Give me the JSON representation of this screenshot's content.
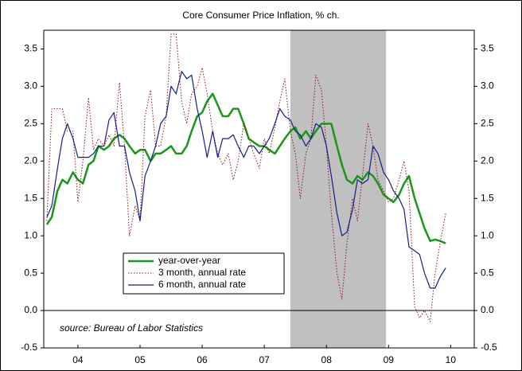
{
  "chart_data": {
    "type": "line",
    "title": "Core Consumer Price Inflation, % ch.",
    "source": "source: Bureau of Labor Statistics",
    "x": [
      2004.0,
      2004.08,
      2004.17,
      2004.25,
      2004.33,
      2004.42,
      2004.5,
      2004.58,
      2004.67,
      2004.75,
      2004.83,
      2004.92,
      2005.0,
      2005.08,
      2005.17,
      2005.25,
      2005.33,
      2005.42,
      2005.5,
      2005.58,
      2005.67,
      2005.75,
      2005.83,
      2005.92,
      2006.0,
      2006.08,
      2006.17,
      2006.25,
      2006.33,
      2006.42,
      2006.5,
      2006.58,
      2006.67,
      2006.75,
      2006.83,
      2006.92,
      2007.0,
      2007.08,
      2007.17,
      2007.25,
      2007.33,
      2007.42,
      2007.5,
      2007.58,
      2007.67,
      2007.75,
      2007.83,
      2007.92,
      2008.0,
      2008.08,
      2008.17,
      2008.25,
      2008.33,
      2008.42,
      2008.5,
      2008.58,
      2008.67,
      2008.75,
      2008.83,
      2008.92,
      2009.0,
      2009.08,
      2009.17,
      2009.25,
      2009.33,
      2009.42,
      2009.5,
      2009.58,
      2009.67,
      2009.75,
      2009.83,
      2009.92,
      2010.0,
      2010.08,
      2010.17,
      2010.25,
      2010.33,
      2010.42
    ],
    "series": [
      {
        "name": "year-over-year",
        "color": "#1a961a",
        "width": 2.5,
        "dash": "",
        "values": [
          1.15,
          1.25,
          1.6,
          1.75,
          1.7,
          1.85,
          1.75,
          1.7,
          1.95,
          2.0,
          2.2,
          2.15,
          2.2,
          2.3,
          2.35,
          2.3,
          2.2,
          2.1,
          2.15,
          2.15,
          2.0,
          2.1,
          2.1,
          2.15,
          2.2,
          2.1,
          2.1,
          2.2,
          2.4,
          2.6,
          2.65,
          2.8,
          2.9,
          2.75,
          2.6,
          2.6,
          2.7,
          2.7,
          2.5,
          2.3,
          2.25,
          2.2,
          2.2,
          2.15,
          2.1,
          2.2,
          2.3,
          2.4,
          2.45,
          2.3,
          2.4,
          2.3,
          2.4,
          2.5,
          2.5,
          2.5,
          2.2,
          1.95,
          1.75,
          1.7,
          1.8,
          1.75,
          1.85,
          1.8,
          1.7,
          1.55,
          1.5,
          1.45,
          1.55,
          1.7,
          1.8,
          1.5,
          1.3,
          1.1,
          0.93,
          0.95,
          0.93,
          0.9
        ]
      },
      {
        "name": "3 month, annual rate",
        "color": "#8b1a1a",
        "width": 1,
        "dash": "1.5,2",
        "values": [
          1.2,
          2.7,
          2.7,
          2.7,
          2.4,
          2.4,
          1.45,
          2.0,
          2.85,
          2.15,
          2.3,
          2.2,
          2.35,
          2.2,
          3.05,
          2.2,
          1.0,
          1.4,
          1.2,
          2.6,
          2.95,
          2.2,
          2.2,
          2.6,
          3.7,
          3.7,
          2.8,
          2.5,
          2.9,
          3.0,
          3.25,
          2.9,
          2.4,
          2.1,
          1.95,
          2.1,
          1.75,
          2.0,
          2.5,
          2.3,
          2.1,
          1.9,
          2.3,
          2.1,
          2.45,
          2.8,
          3.1,
          2.4,
          2.1,
          1.5,
          2.1,
          2.3,
          3.15,
          2.95,
          2.2,
          1.3,
          0.5,
          0.15,
          0.9,
          1.5,
          1.2,
          1.8,
          2.5,
          2.2,
          1.75,
          1.6,
          1.45,
          1.5,
          1.75,
          2.0,
          1.6,
          0.05,
          -0.1,
          0.0,
          -0.15,
          0.5,
          0.9,
          1.3
        ]
      },
      {
        "name": "6 month, annual rate",
        "color": "#1a1a8c",
        "width": 1.2,
        "dash": "",
        "values": [
          1.25,
          1.4,
          1.9,
          2.3,
          2.5,
          2.3,
          2.05,
          2.05,
          2.05,
          2.1,
          2.2,
          2.2,
          2.55,
          2.65,
          2.2,
          2.2,
          1.85,
          1.6,
          1.2,
          1.8,
          2.0,
          2.2,
          2.5,
          2.6,
          3.0,
          2.9,
          3.2,
          3.1,
          3.15,
          2.7,
          2.4,
          2.05,
          2.4,
          2.05,
          2.3,
          2.3,
          2.35,
          2.2,
          2.05,
          2.2,
          2.2,
          2.1,
          2.2,
          2.3,
          2.5,
          2.7,
          2.6,
          2.55,
          2.4,
          2.35,
          2.2,
          2.3,
          2.5,
          2.45,
          2.2,
          1.8,
          1.3,
          1.0,
          1.05,
          1.35,
          1.75,
          1.7,
          1.75,
          2.2,
          2.1,
          1.85,
          1.75,
          1.6,
          1.5,
          1.35,
          0.85,
          0.8,
          0.75,
          0.5,
          0.3,
          0.3,
          0.45,
          0.57
        ]
      }
    ],
    "shade": {
      "x": [
        2007.92,
        2009.46
      ],
      "color": "#c0c0c0"
    },
    "xlim": [
      2003.95,
      2010.88
    ],
    "xticks": [
      {
        "value": 2004.5,
        "label": "04"
      },
      {
        "value": 2005.5,
        "label": "05"
      },
      {
        "value": 2006.5,
        "label": "06"
      },
      {
        "value": 2007.5,
        "label": "07"
      },
      {
        "value": 2008.5,
        "label": "08"
      },
      {
        "value": 2009.5,
        "label": "09"
      },
      {
        "value": 2010.5,
        "label": "10"
      }
    ],
    "ylim": [
      -0.5,
      3.75
    ],
    "yticks": [
      -0.5,
      {
        "value": 0,
        "label": "0.0"
      },
      0.5,
      {
        "value": 1,
        "label": "1.0"
      },
      1.5,
      {
        "value": 2,
        "label": "2.0"
      },
      2.5,
      {
        "value": 3,
        "label": "3.0"
      },
      3.5
    ],
    "right_axis_labels": true,
    "zero_line": true,
    "grid": false
  }
}
